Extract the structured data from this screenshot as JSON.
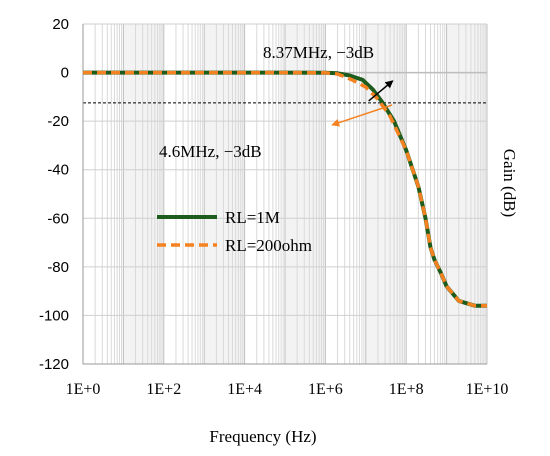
{
  "chart_data": {
    "type": "line",
    "title": "",
    "xlabel": "Frequency (Hz)",
    "ylabel": "Gain (dB)",
    "xscale": "log",
    "xlim": [
      1,
      10000000000
    ],
    "ylim": [
      -120,
      20
    ],
    "xticks": [
      {
        "value": 1,
        "label": "1E+0"
      },
      {
        "value": 100,
        "label": "1E+2"
      },
      {
        "value": 10000,
        "label": "1E+4"
      },
      {
        "value": 1000000,
        "label": "1E+6"
      },
      {
        "value": 100000000,
        "label": "1E+8"
      },
      {
        "value": 10000000000,
        "label": "1E+10"
      }
    ],
    "yticks": [
      20,
      0,
      -20,
      -40,
      -60,
      -80,
      -100,
      -120
    ],
    "grid": true,
    "legend_position": "center-left",
    "colors": {
      "rl_1m": "#1e5c1e",
      "rl_200ohm": "#f58220",
      "arrow_1m": "#000000",
      "arrow_200ohm": "#f58220",
      "ref_line": "#000000"
    },
    "series": [
      {
        "name": "RL=1M",
        "style": "solid",
        "points": [
          [
            1,
            0
          ],
          [
            10,
            0
          ],
          [
            100,
            0
          ],
          [
            1000,
            0
          ],
          [
            10000,
            0
          ],
          [
            100000,
            0
          ],
          [
            1000000,
            -0.05
          ],
          [
            2000000,
            -0.3
          ],
          [
            4000000,
            -1.2
          ],
          [
            8370000,
            -3
          ],
          [
            15000000,
            -7
          ],
          [
            25000000,
            -12
          ],
          [
            50000000,
            -20
          ],
          [
            100000000,
            -32
          ],
          [
            200000000,
            -47
          ],
          [
            300000000,
            -60
          ],
          [
            400000000,
            -72
          ],
          [
            500000000,
            -77
          ],
          [
            700000000,
            -82
          ],
          [
            1000000000,
            -88
          ],
          [
            2000000000,
            -94
          ],
          [
            5000000000,
            -96
          ],
          [
            10000000000,
            -96
          ]
        ]
      },
      {
        "name": "RL=200ohm",
        "style": "dashed",
        "points": [
          [
            1,
            0
          ],
          [
            10,
            0
          ],
          [
            100,
            0
          ],
          [
            1000,
            0
          ],
          [
            10000,
            0
          ],
          [
            100000,
            0
          ],
          [
            1000000,
            -0.1
          ],
          [
            2000000,
            -0.6
          ],
          [
            4600000,
            -3
          ],
          [
            10000000,
            -6
          ],
          [
            20000000,
            -11
          ],
          [
            40000000,
            -18
          ],
          [
            100000000,
            -32
          ],
          [
            200000000,
            -47
          ],
          [
            300000000,
            -60
          ],
          [
            400000000,
            -72
          ],
          [
            500000000,
            -77
          ],
          [
            700000000,
            -82
          ],
          [
            1000000000,
            -88
          ],
          [
            2000000000,
            -94
          ],
          [
            5000000000,
            -96
          ],
          [
            10000000000,
            -96
          ]
        ]
      }
    ],
    "reference_line_db": -12.5,
    "annotations": [
      {
        "text": "8.37MHz, −3dB",
        "x": 8370000,
        "y": -3
      },
      {
        "text": "4.6MHz, −3dB",
        "x": 4600000,
        "y": -3
      }
    ]
  }
}
